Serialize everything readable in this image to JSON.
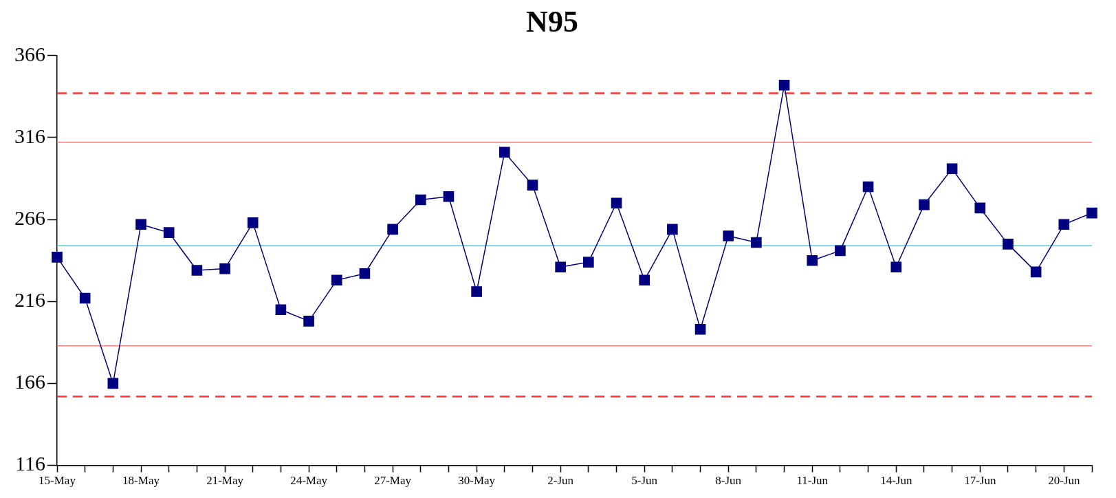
{
  "chart_data": {
    "type": "line",
    "title": "N95",
    "categories": [
      "15-May",
      null,
      null,
      "18-May",
      null,
      null,
      "21-May",
      null,
      null,
      "24-May",
      null,
      null,
      "27-May",
      null,
      null,
      "30-May",
      null,
      null,
      "2-Jun",
      null,
      null,
      "5-Jun",
      null,
      null,
      "8-Jun",
      null,
      null,
      "11-Jun",
      null,
      null,
      "14-Jun",
      null,
      null,
      "17-Jun",
      null,
      null,
      "20-Jun",
      null
    ],
    "series": [
      {
        "color": "#000080",
        "values": [
          243,
          218,
          166,
          263,
          258,
          235,
          236,
          264,
          211,
          204,
          229,
          233,
          260,
          278,
          280,
          222,
          307,
          287,
          237,
          240,
          276,
          229,
          260,
          199,
          256,
          252,
          348,
          241,
          247,
          286,
          237,
          275,
          297,
          273,
          251,
          234,
          263,
          270
        ]
      }
    ],
    "ylim": [
      116,
      366
    ],
    "yticks": [
      116,
      166,
      216,
      266,
      316,
      366
    ],
    "grid": false,
    "legend": false,
    "marker": "square",
    "line_style": "solid",
    "ref_lines": [
      {
        "axis": "y",
        "value": 343,
        "color": "#ff3333",
        "line_style": "dashed"
      },
      {
        "axis": "y",
        "value": 313,
        "color": "#ff8080",
        "line_style": "solid"
      },
      {
        "axis": "y",
        "value": 250,
        "color": "#33ddee",
        "line_style": "solid"
      },
      {
        "axis": "y",
        "value": 189,
        "color": "#ff8080",
        "line_style": "solid"
      },
      {
        "axis": "y",
        "value": 158,
        "color": "#ff3333",
        "line_style": "dashed"
      }
    ]
  }
}
